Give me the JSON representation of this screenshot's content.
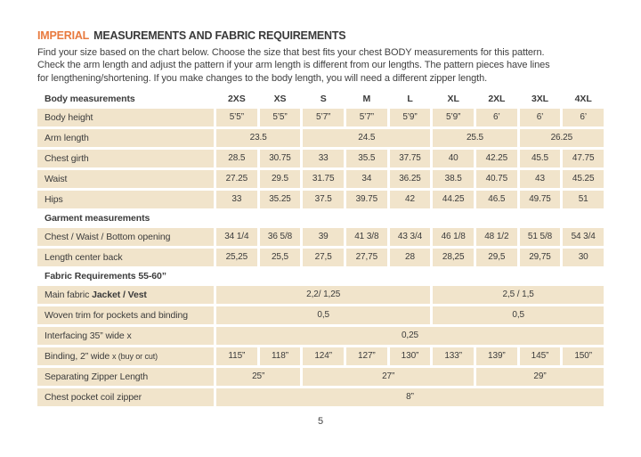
{
  "header": {
    "title_highlight": "IMPERIAL",
    "title_rest": "MEASUREMENTS AND FABRIC REQUIREMENTS",
    "intro_lines": [
      "Find your size based on the chart below. Choose the size that best fits your chest BODY measurements for this pattern.",
      "Check the arm length and adjust the pattern if your arm length is different from our lengths. The pattern pieces have lines",
      "for lengthening/shortening. If you make changes to the body length, you will need a different zipper length."
    ]
  },
  "colors": {
    "accent": "#E87A3E",
    "cell_bg": "#F1E4CB",
    "text": "#3B3B3B"
  },
  "table": {
    "column_header_label": "Body measurements",
    "size_columns": [
      "2XS",
      "XS",
      "S",
      "M",
      "L",
      "XL",
      "2XL",
      "3XL",
      "4XL"
    ],
    "rows": [
      {
        "kind": "data",
        "label": [
          {
            "t": "Body height"
          }
        ],
        "cells": [
          {
            "t": "5’5”"
          },
          {
            "t": "5’5”"
          },
          {
            "t": "5’7”"
          },
          {
            "t": "5’7”"
          },
          {
            "t": "5’9”"
          },
          {
            "t": "5’9”"
          },
          {
            "t": "6’"
          },
          {
            "t": "6’"
          },
          {
            "t": "6’"
          }
        ]
      },
      {
        "kind": "data",
        "label": [
          {
            "t": "Arm length"
          }
        ],
        "cells": [
          {
            "t": "23.5",
            "s": 2
          },
          {
            "t": "24.5",
            "s": 3
          },
          {
            "t": "25.5",
            "s": 2
          },
          {
            "t": "26.25",
            "s": 2
          }
        ]
      },
      {
        "kind": "data",
        "label": [
          {
            "t": "Chest girth"
          }
        ],
        "cells": [
          {
            "t": "28.5"
          },
          {
            "t": "30.75"
          },
          {
            "t": "33"
          },
          {
            "t": "35.5"
          },
          {
            "t": "37.75"
          },
          {
            "t": "40"
          },
          {
            "t": "42.25"
          },
          {
            "t": "45.5"
          },
          {
            "t": "47.75"
          }
        ]
      },
      {
        "kind": "data",
        "label": [
          {
            "t": "Waist"
          }
        ],
        "cells": [
          {
            "t": "27.25"
          },
          {
            "t": "29.5"
          },
          {
            "t": "31.75"
          },
          {
            "t": "34"
          },
          {
            "t": "36.25"
          },
          {
            "t": "38.5"
          },
          {
            "t": "40.75"
          },
          {
            "t": "43"
          },
          {
            "t": "45.25"
          }
        ]
      },
      {
        "kind": "data",
        "label": [
          {
            "t": "Hips"
          }
        ],
        "cells": [
          {
            "t": "33"
          },
          {
            "t": "35.25"
          },
          {
            "t": "37.5"
          },
          {
            "t": "39.75"
          },
          {
            "t": "42"
          },
          {
            "t": "44.25"
          },
          {
            "t": "46.5"
          },
          {
            "t": "49.75"
          },
          {
            "t": "51"
          }
        ]
      },
      {
        "kind": "section",
        "label": [
          {
            "t": "Garment measurements"
          }
        ]
      },
      {
        "kind": "data",
        "label": [
          {
            "t": "Chest / Waist / Bottom opening"
          }
        ],
        "cells": [
          {
            "t": "34 1/4"
          },
          {
            "t": "36 5/8"
          },
          {
            "t": "39"
          },
          {
            "t": "41 3/8"
          },
          {
            "t": "43 3/4"
          },
          {
            "t": "46 1/8"
          },
          {
            "t": "48 1/2"
          },
          {
            "t": "51 5/8"
          },
          {
            "t": "54 3/4"
          }
        ]
      },
      {
        "kind": "data",
        "label": [
          {
            "t": "Length center back"
          }
        ],
        "cells": [
          {
            "t": "25,25"
          },
          {
            "t": "25,5"
          },
          {
            "t": "27,5"
          },
          {
            "t": "27,75"
          },
          {
            "t": "28"
          },
          {
            "t": "28,25"
          },
          {
            "t": "29,5"
          },
          {
            "t": "29,75"
          },
          {
            "t": "30"
          }
        ]
      },
      {
        "kind": "section",
        "label": [
          {
            "t": "Fabric Requirements 55-60”"
          }
        ]
      },
      {
        "kind": "data",
        "label": [
          {
            "t": "Main fabric "
          },
          {
            "t": "Jacket / Vest",
            "b": true
          }
        ],
        "cells": [
          {
            "t": "2,2/ 1,25",
            "s": 5
          },
          {
            "t": "2,5 / 1,5",
            "s": 4
          }
        ]
      },
      {
        "kind": "data",
        "label": [
          {
            "t": "Woven trim for pockets and binding"
          }
        ],
        "cells": [
          {
            "t": "0,5",
            "s": 5
          },
          {
            "t": "0,5",
            "s": 4
          }
        ]
      },
      {
        "kind": "data",
        "label": [
          {
            "t": "Interfacing 35” wide x"
          }
        ],
        "cells": [
          {
            "t": "0,25",
            "s": 9
          }
        ]
      },
      {
        "kind": "data",
        "label": [
          {
            "t": "Binding, 2” wide "
          },
          {
            "t": "x (buy or cut)",
            "sm": true
          }
        ],
        "cells": [
          {
            "t": "115”"
          },
          {
            "t": "118”"
          },
          {
            "t": "124”"
          },
          {
            "t": "127”"
          },
          {
            "t": "130”"
          },
          {
            "t": "133”"
          },
          {
            "t": "139”"
          },
          {
            "t": "145”"
          },
          {
            "t": "150”"
          }
        ]
      },
      {
        "kind": "data",
        "label": [
          {
            "t": "Separating Zipper Length"
          }
        ],
        "cells": [
          {
            "t": "25”",
            "s": 2
          },
          {
            "t": "27”",
            "s": 4
          },
          {
            "t": "29”",
            "s": 3
          }
        ]
      },
      {
        "kind": "data",
        "label": [
          {
            "t": "Chest pocket coil zipper"
          }
        ],
        "cells": [
          {
            "t": "8”",
            "s": 9
          }
        ]
      }
    ]
  },
  "footer": {
    "page_number": "5"
  }
}
